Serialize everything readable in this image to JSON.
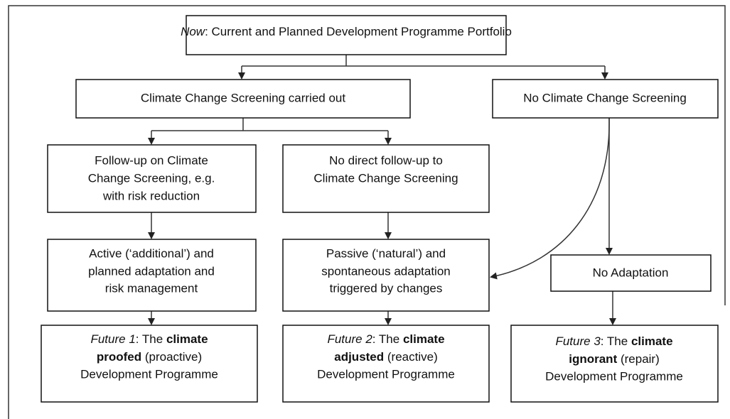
{
  "nodes": [
    {
      "lines": [
        [
          "Now",
          ": Current and Planned Development Programme Portfolio"
        ]
      ]
    },
    {
      "lines": [
        [
          "Climate Change Screening carried out"
        ]
      ]
    },
    {
      "lines": [
        [
          "No Climate Change Screening"
        ]
      ]
    },
    {
      "lines": [
        [
          "Follow-up on Climate"
        ],
        [
          "Change Screening, e.g."
        ],
        [
          "with risk reduction"
        ]
      ]
    },
    {
      "lines": [
        [
          "No direct follow-up to"
        ],
        [
          "Climate Change Screening"
        ]
      ]
    },
    {
      "lines": [
        [
          "Active (‘additional’) and"
        ],
        [
          "planned adaptation and"
        ],
        [
          "risk management"
        ]
      ]
    },
    {
      "lines": [
        [
          "Passive (‘natural’) and"
        ],
        [
          "spontaneous adaptation"
        ],
        [
          "triggered by changes"
        ]
      ]
    },
    {
      "lines": [
        [
          "No Adaptation"
        ]
      ]
    },
    {
      "lines": [
        [
          "Future 1",
          ": The ",
          "climate"
        ],
        [
          "proofed",
          " (proactive)"
        ],
        [
          "Development Programme"
        ]
      ]
    },
    {
      "lines": [
        [
          "Future 2",
          ": The ",
          "climate"
        ],
        [
          "adjusted",
          " (reactive)"
        ],
        [
          "Development Programme"
        ]
      ]
    },
    {
      "lines": [
        [
          "Future 3",
          ": The ",
          "climate"
        ],
        [
          "ignorant",
          " (repair)"
        ],
        [
          "Development Programme"
        ]
      ]
    }
  ]
}
